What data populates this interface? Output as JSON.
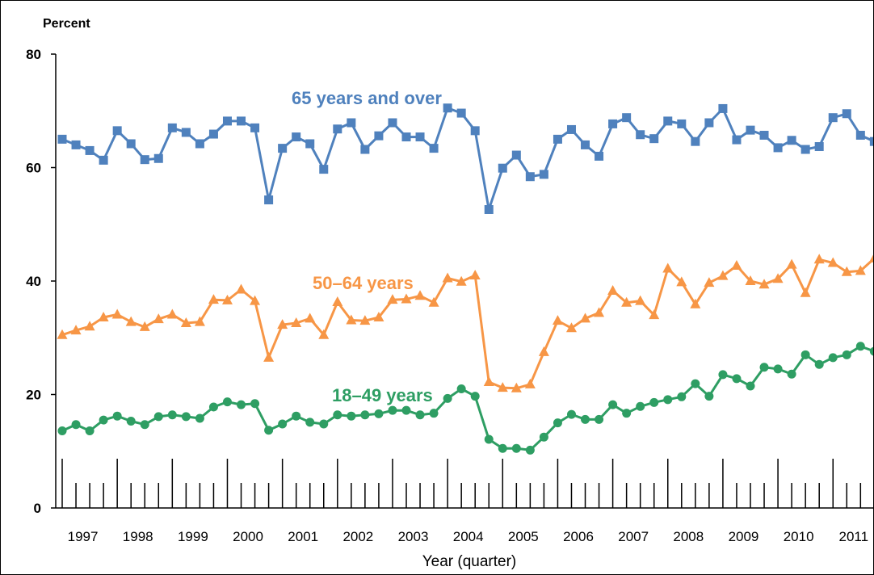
{
  "chart_data": {
    "type": "line",
    "title": "",
    "ylabel": "Percent",
    "xlabel": "Year (quarter)",
    "ylim": [
      0,
      80
    ],
    "yticks": [
      0,
      20,
      40,
      60,
      80
    ],
    "grid": false,
    "years": [
      "1997",
      "1998",
      "1999",
      "2000",
      "2001",
      "2002",
      "2003",
      "2004",
      "2005",
      "2006",
      "2007",
      "2008",
      "2009",
      "2010",
      "2011"
    ],
    "series": [
      {
        "name": "65 years and over",
        "color": "#4f81bd",
        "marker": "square",
        "values": [
          65.0,
          64.0,
          63.0,
          61.3,
          66.5,
          64.2,
          61.4,
          61.6,
          67.0,
          66.2,
          64.2,
          65.9,
          68.2,
          68.2,
          67.0,
          54.3,
          63.4,
          65.4,
          64.2,
          59.7,
          66.8,
          67.9,
          63.2,
          65.6,
          67.9,
          65.4,
          65.4,
          63.4,
          70.5,
          69.6,
          66.5,
          52.6,
          59.9,
          62.2,
          58.4,
          58.8,
          65.0,
          66.7,
          64.0,
          62.0,
          67.7,
          68.8,
          65.8,
          65.1,
          68.2,
          67.7,
          64.6,
          67.9,
          70.4,
          64.9,
          66.6,
          65.7,
          63.5,
          64.8,
          63.2,
          63.7,
          68.8,
          69.5,
          65.7,
          64.6
        ]
      },
      {
        "name": "50–64 years",
        "color": "#f79646",
        "marker": "triangle",
        "values": [
          30.5,
          31.3,
          32.0,
          33.6,
          34.1,
          32.8,
          31.9,
          33.3,
          34.1,
          32.6,
          32.8,
          36.7,
          36.6,
          38.5,
          36.5,
          26.5,
          32.3,
          32.6,
          33.4,
          30.5,
          36.3,
          33.1,
          33.0,
          33.6,
          36.7,
          36.8,
          37.4,
          36.2,
          40.5,
          39.9,
          41.0,
          22.2,
          21.2,
          21.1,
          21.8,
          27.5,
          33.0,
          31.7,
          33.4,
          34.4,
          38.3,
          36.2,
          36.5,
          34.0,
          42.2,
          39.8,
          35.9,
          39.7,
          40.9,
          42.7,
          40.0,
          39.4,
          40.4,
          42.9,
          37.9,
          43.8,
          43.2,
          41.6,
          41.8,
          44.0
        ]
      },
      {
        "name": "18–49 years",
        "color": "#2e9e63",
        "marker": "circle",
        "values": [
          13.6,
          14.7,
          13.6,
          15.5,
          16.2,
          15.3,
          14.7,
          16.1,
          16.4,
          16.1,
          15.8,
          17.8,
          18.7,
          18.2,
          18.4,
          13.7,
          14.8,
          16.2,
          15.1,
          14.8,
          16.4,
          16.2,
          16.4,
          16.6,
          17.2,
          17.2,
          16.4,
          16.7,
          19.3,
          21.0,
          19.7,
          12.1,
          10.5,
          10.5,
          10.2,
          12.5,
          15.0,
          16.5,
          15.6,
          15.6,
          18.2,
          16.7,
          17.9,
          18.6,
          19.1,
          19.6,
          21.9,
          19.7,
          23.5,
          22.8,
          21.5,
          24.8,
          24.5,
          23.6,
          27.0,
          25.3,
          26.5,
          27.0,
          28.5,
          27.6
        ]
      }
    ],
    "series_label_text": [
      "65 years and over",
      "50–64 years",
      "18–49 years"
    ]
  }
}
